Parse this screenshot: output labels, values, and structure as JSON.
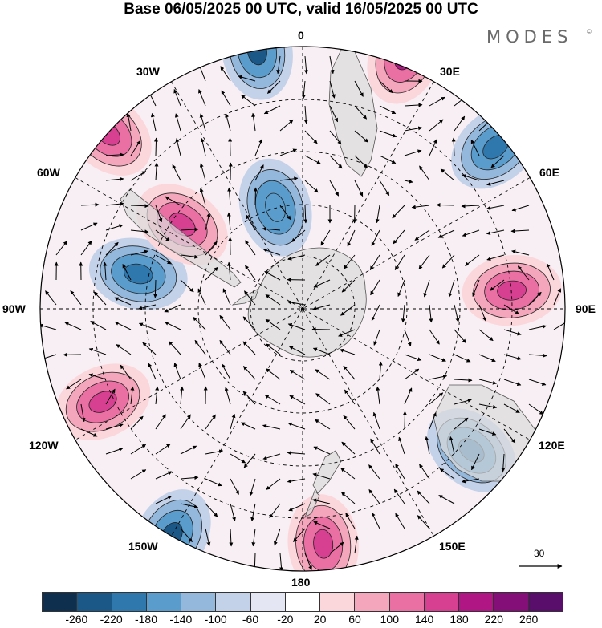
{
  "title": "Base 06/05/2025 00 UTC, valid 16/05/2025 00 UTC",
  "logo": "MODES",
  "logo_mark": "©",
  "longitude_labels": {
    "lon_0": "0",
    "lon_30E": "30E",
    "lon_60E": "60E",
    "lon_90E": "90E",
    "lon_120E": "120E",
    "lon_150E": "150E",
    "lon_180": "180",
    "lon_150W": "150W",
    "lon_120W": "120W",
    "lon_90W": "90W",
    "lon_60W": "60W",
    "lon_30W": "30W"
  },
  "reference_vector": "30",
  "colorbar": {
    "ticks": [
      "-260",
      "-220",
      "-180",
      "-140",
      "-100",
      "-60",
      "-20",
      "20",
      "60",
      "100",
      "140",
      "180",
      "220",
      "260"
    ],
    "colors": [
      "#0f2f4f",
      "#1c5887",
      "#2f78ae",
      "#5a9ccb",
      "#93b8dc",
      "#c3d1e9",
      "#e5e6f3",
      "#ffffff",
      "#fbd7dc",
      "#f4a7bc",
      "#ea6fa3",
      "#d73f91",
      "#b11784",
      "#850f79",
      "#5a0e6b"
    ]
  },
  "anomaly_centers": [
    {
      "type": "low",
      "lon": -10,
      "lat": -40,
      "color": "#1c5887"
    },
    {
      "type": "high",
      "lon": 22,
      "lat": -38,
      "color": "#b11784"
    },
    {
      "type": "low",
      "lon": 50,
      "lat": -42,
      "color": "#2f78ae"
    },
    {
      "type": "high",
      "lon": -48,
      "lat": -40,
      "color": "#d73f91"
    },
    {
      "type": "low",
      "lon": -78,
      "lat": -58,
      "color": "#2f78ae"
    },
    {
      "type": "high",
      "lon": 85,
      "lat": -50,
      "color": "#d73f91"
    },
    {
      "type": "high",
      "lon": -115,
      "lat": -48,
      "color": "#d73f91"
    },
    {
      "type": "low",
      "lon": 130,
      "lat": -48,
      "color": "#2f78ae"
    },
    {
      "type": "low",
      "lon": -150,
      "lat": -40,
      "color": "#1c5887"
    },
    {
      "type": "high",
      "lon": 175,
      "lat": -45,
      "color": "#d73f91"
    },
    {
      "type": "high",
      "lon": -55,
      "lat": -62,
      "color": "#d73f91"
    },
    {
      "type": "low",
      "lon": -15,
      "lat": -70,
      "color": "#5a9ccb"
    }
  ]
}
